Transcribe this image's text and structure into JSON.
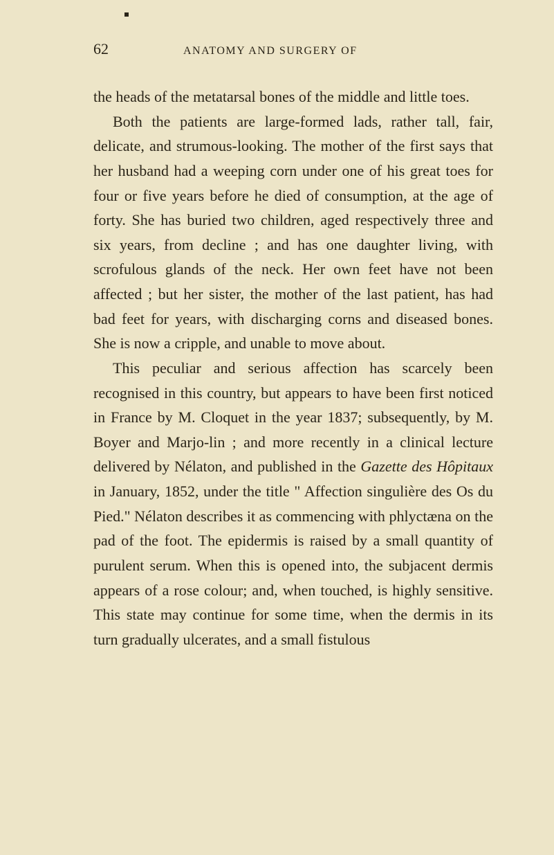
{
  "page_number": "62",
  "running_title": "ANATOMY AND SURGERY OF",
  "paragraphs": {
    "p1": "the heads of the metatarsal bones of the middle and little toes.",
    "p2": "Both the patients are large-formed lads, rather tall, fair, delicate, and strumous-looking. The mother of the first says that her husband had a weeping corn under one of his great toes for four or five years before he died of consumption, at the age of forty. She has buried two children, aged respectively three and six years, from decline ; and has one daughter living, with scrofulous glands of the neck. Her own feet have not been affected ; but her sister, the mother of the last patient, has had bad feet for years, with discharging corns and diseased bones. She is now a cripple, and unable to move about.",
    "p3_part1": "This peculiar and serious affection has scarcely been recognised in this country, but appears to have been first noticed in France by M. Cloquet in the year 1837; subsequently, by M. Boyer and Marjo-lin ; and more recently in a clinical lecture delivered by Nélaton, and published in the ",
    "p3_italic1": "Gazette des Hôpitaux",
    "p3_part2": " in January, 1852, under the title \" Affection singulière des Os du Pied.\" Nélaton describes it as commencing with phlyctæna on the pad of the foot. The epidermis is raised by a small quantity of purulent serum. When this is opened into, the subjacent dermis appears of a rose colour; and, when touched, is highly sensitive. This state may continue for some time, when the dermis in its turn gradually ulcerates, and a small fistulous"
  },
  "colors": {
    "background": "#ede5c8",
    "text": "#2a2418"
  },
  "typography": {
    "body_fontsize": 22,
    "header_number_fontsize": 22,
    "header_title_fontsize": 16,
    "line_height": 1.62,
    "font_family": "Georgia, Times New Roman, serif"
  }
}
